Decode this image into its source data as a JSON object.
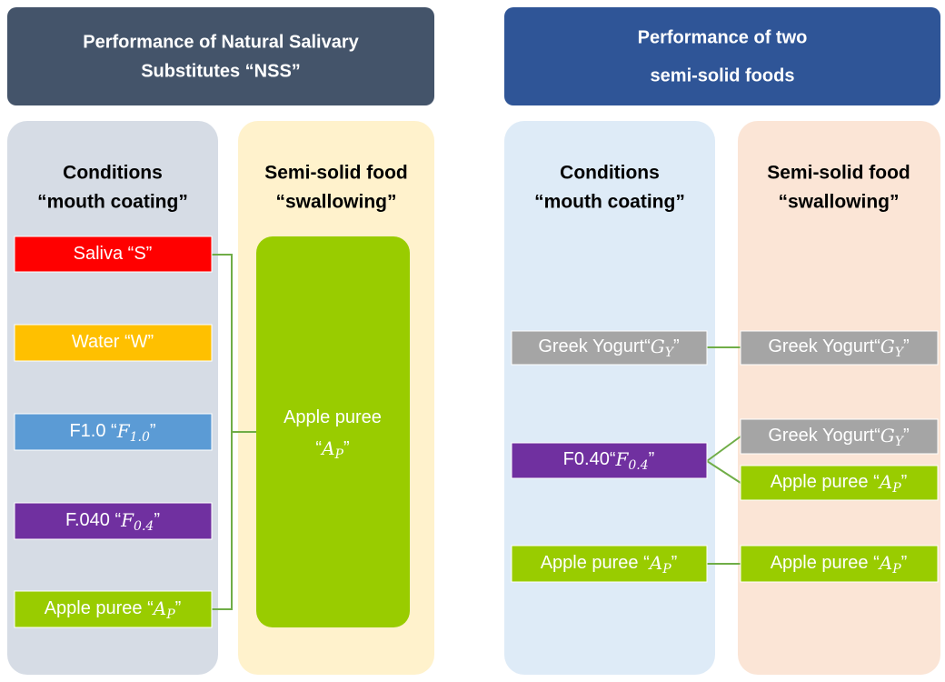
{
  "left": {
    "header": [
      "Performance of Natural Salivary",
      "Substitutes “NSS”"
    ],
    "conditions_title": [
      "Conditions",
      "“mouth coating”"
    ],
    "food_title": [
      "Semi-solid food",
      "“swallowing”"
    ],
    "conditions": [
      {
        "text": "Saliva “S”"
      },
      {
        "text": "Water “W”"
      },
      {
        "text": "F1.0 “",
        "math": "F",
        "sub": "1.0",
        "close": "”"
      },
      {
        "text": "F.040 “",
        "math": "F",
        "sub": "0.4",
        "close": "”"
      },
      {
        "text": "Apple puree “",
        "math": "A",
        "sub": "P",
        "close": "”"
      }
    ],
    "food": {
      "line1": "Apple puree",
      "open": "“",
      "math": "A",
      "sub": "P",
      "close": "”"
    }
  },
  "right": {
    "header": [
      "Performance of two",
      "semi-solid foods"
    ],
    "conditions_title": [
      "Conditions",
      "“mouth coating”"
    ],
    "food_title": [
      "Semi-solid food",
      "“swallowing”"
    ],
    "conditions": [
      {
        "text": "Greek Yogurt“",
        "math": "G",
        "sub": "Y",
        "close": "”"
      },
      {
        "text": "F0.40“",
        "math": "F",
        "sub": "0.4",
        "close": "”"
      },
      {
        "text": "Apple puree “",
        "math": "A",
        "sub": "P",
        "close": "”"
      }
    ],
    "foods": [
      {
        "text": "Greek Yogurt“",
        "math": "G",
        "sub": "Y",
        "close": "”"
      },
      {
        "text": "Greek Yogurt“",
        "math": "G",
        "sub": "Y",
        "close": "”"
      },
      {
        "text": "Apple puree “",
        "math": "A",
        "sub": "P",
        "close": "”"
      },
      {
        "text": "Apple puree “",
        "math": "A",
        "sub": "P",
        "close": "”"
      }
    ]
  }
}
